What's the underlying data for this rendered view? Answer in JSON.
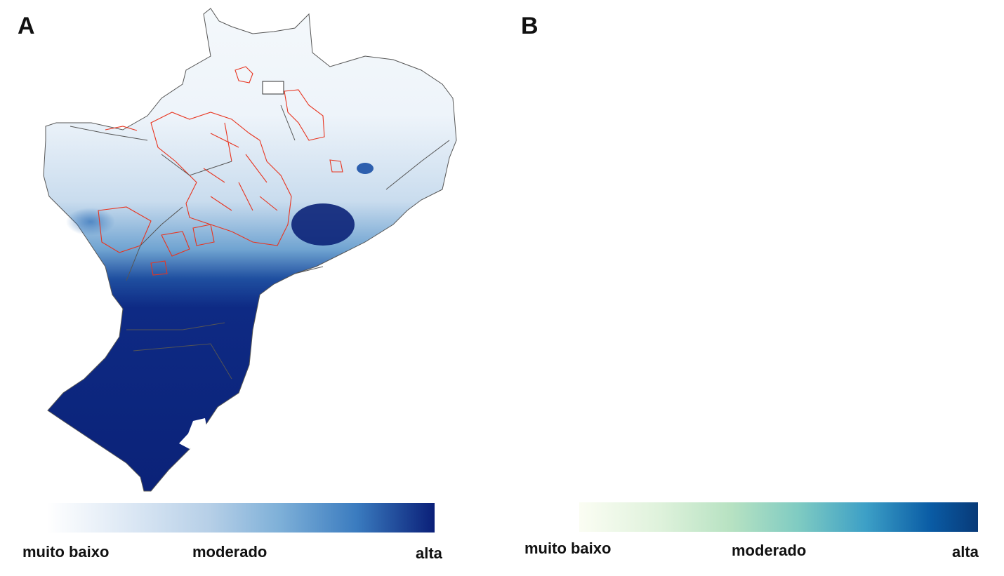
{
  "panels": [
    {
      "letter": "A",
      "legend": {
        "low": "muito baixo",
        "mid": "moderado",
        "high": "alta"
      },
      "colors": {
        "low": "#ffffff",
        "high": "#0a1f78",
        "outline": "#e8341f"
      }
    },
    {
      "letter": "B",
      "legend": {
        "low": "muito baixo",
        "mid": "moderado",
        "high": "alta"
      },
      "colors": {
        "low": "#fbfdf3",
        "high": "#083a78",
        "outline": "#e8341f"
      }
    }
  ]
}
